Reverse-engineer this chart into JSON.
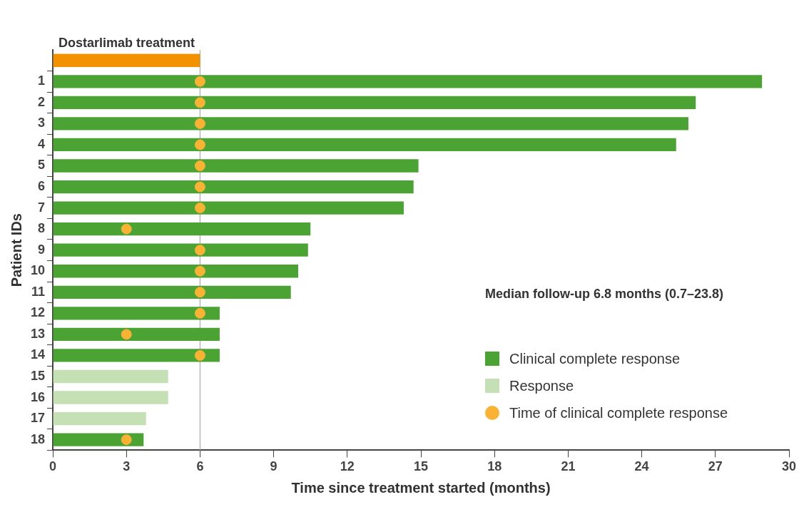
{
  "chart_data": {
    "type": "bar",
    "orientation": "horizontal",
    "xlabel": "Time since treatment started (months)",
    "ylabel": "Patient IDs",
    "categories": [
      null,
      "1",
      "2",
      "3",
      "4",
      "5",
      "6",
      "7",
      "8",
      "9",
      "10",
      "11",
      "12",
      "13",
      "14",
      "15",
      "16",
      "17",
      "18"
    ],
    "series": [
      {
        "color": "#f39200",
        "values": [
          6,
          null,
          null,
          null,
          null,
          null,
          null,
          null,
          null,
          null,
          null,
          null,
          null,
          null,
          null,
          null,
          null,
          null,
          null
        ]
      },
      {
        "name": "Clinical complete response",
        "color": "#4ba333",
        "values": [
          null,
          28.9,
          26.2,
          25.9,
          25.4,
          14.9,
          14.7,
          14.3,
          10.5,
          10.4,
          10.0,
          9.7,
          6.8,
          6.8,
          6.8,
          null,
          null,
          null,
          3.7
        ]
      },
      {
        "name": "Response",
        "color": "#c5e0b4",
        "values": [
          null,
          null,
          null,
          null,
          null,
          null,
          null,
          null,
          null,
          null,
          null,
          null,
          null,
          null,
          null,
          4.7,
          4.7,
          3.8,
          null
        ]
      },
      {
        "name": "Time of clinical complete response",
        "type": "scatter",
        "color": "#f9b233",
        "marker": "circle",
        "values": [
          null,
          6,
          6,
          6,
          6,
          6,
          6,
          6,
          3,
          6,
          6,
          6,
          6,
          3,
          6,
          null,
          null,
          null,
          3
        ]
      }
    ],
    "xlim": [
      0,
      30
    ],
    "xticks": [
      0,
      3,
      6,
      9,
      12,
      15,
      18,
      21,
      24,
      27,
      30
    ],
    "ref_lines": [
      {
        "axis": "x",
        "value": 6,
        "color": "#aaaaaa"
      }
    ],
    "annotations": [
      "Dostarlimab treatment",
      "Median follow-up 6.8 months (0.7–23.8)"
    ],
    "legend": "bottom right",
    "grid": false
  }
}
